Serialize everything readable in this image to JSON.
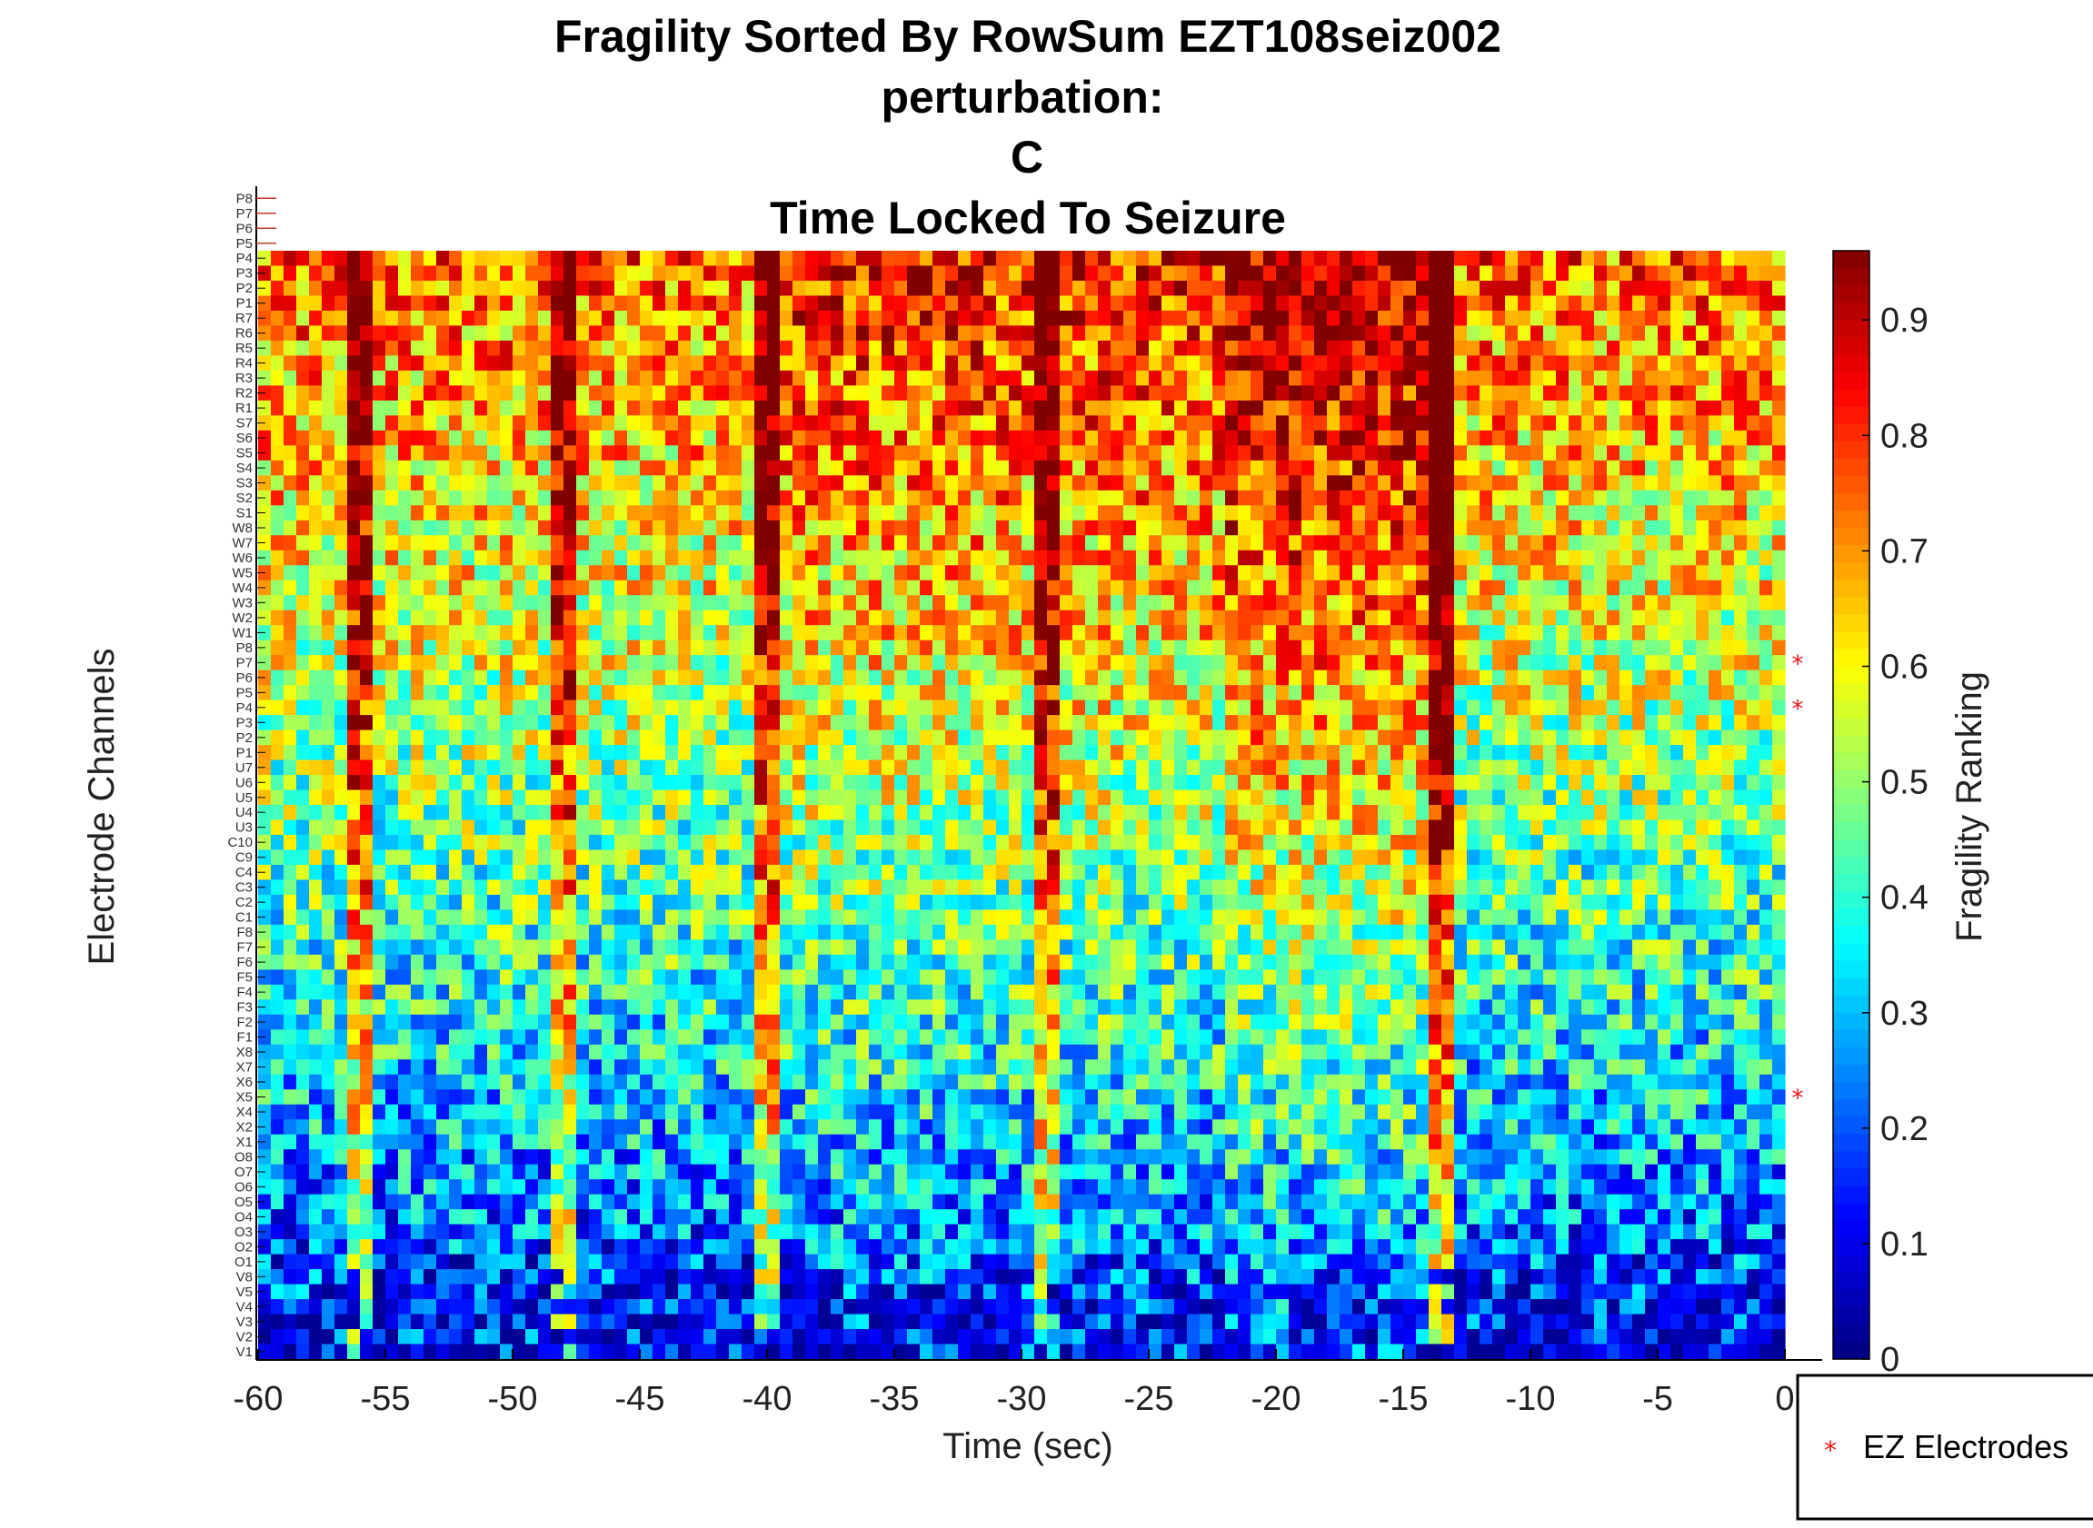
{
  "chart_data": {
    "type": "heatmap",
    "title_lines": [
      "Fragility Sorted By RowSum EZT108seiz002",
      "perturbation:",
      "C",
      "Time Locked To Seizure"
    ],
    "xlabel": "Time (sec)",
    "ylabel": "Electrode Channels",
    "xlim": [
      -60,
      0
    ],
    "x_ticks": [
      -60,
      -55,
      -50,
      -45,
      -40,
      -35,
      -30,
      -25,
      -20,
      -15,
      -10,
      -5,
      0
    ],
    "x_tick_labels": [
      "-60",
      "-55",
      "-50",
      "-45",
      "-40",
      "-35",
      "-30",
      "-25",
      "-20",
      "-15",
      "-10",
      "-5",
      "0"
    ],
    "colorbar": {
      "label": "Fragility Ranking",
      "range": [
        0,
        0.96
      ],
      "ticks": [
        0,
        0.1,
        0.2,
        0.3,
        0.4,
        0.5,
        0.6,
        0.7,
        0.8,
        0.9
      ],
      "tick_labels": [
        "0",
        "0.1",
        "0.2",
        "0.3",
        "0.4",
        "0.5",
        "0.6",
        "0.7",
        "0.8",
        "0.9"
      ],
      "colormap": "jet"
    },
    "extra_labels_above": [
      "P8",
      "P7",
      "P6",
      "P5"
    ],
    "channels_top_to_bottom": [
      "P4",
      "P3",
      "P2",
      "P1",
      "R7",
      "R6",
      "R5",
      "R4",
      "R3",
      "R2",
      "R1",
      "S7",
      "S6",
      "S5",
      "S4",
      "S3",
      "S2",
      "S1",
      "W8",
      "W7",
      "W6",
      "W5",
      "W4",
      "W3",
      "W2",
      "W1",
      "P8",
      "P7",
      "P6",
      "P5",
      "P4",
      "P3",
      "P2",
      "P1",
      "U7",
      "U6",
      "U5",
      "U4",
      "U3",
      "C10",
      "C9",
      "C4",
      "C3",
      "C2",
      "C1",
      "F8",
      "F7",
      "F6",
      "F5",
      "F4",
      "F3",
      "F2",
      "F1",
      "X8",
      "X7",
      "X6",
      "X5",
      "X4",
      "X2",
      "X1",
      "O8",
      "O7",
      "O6",
      "O5",
      "O4",
      "O3",
      "O2",
      "O1",
      "V8",
      "V5",
      "V4",
      "V3",
      "V2",
      "V1"
    ],
    "ez_electrodes": [
      "W2",
      "P7",
      "X6"
    ],
    "ez_marker_rows": [
      27,
      30,
      56
    ],
    "time_columns": 120,
    "high_fragility_time_bands_sec": [
      -56,
      -48,
      -40,
      -29,
      -13.5
    ],
    "summary": "Fragility increases from lower rows (~0.1-0.4, V/O channels) to upper rows (~0.7-0.95, P/R/S channels), with the highest values between -22 s and -13 s.",
    "legend": {
      "marker": "*",
      "label": "EZ Electrodes",
      "position": "bottom-right"
    },
    "grid": false
  },
  "colors": {
    "ez_label": "#e8121a",
    "ez_marker": "#e8121a",
    "axis": "#000000"
  }
}
